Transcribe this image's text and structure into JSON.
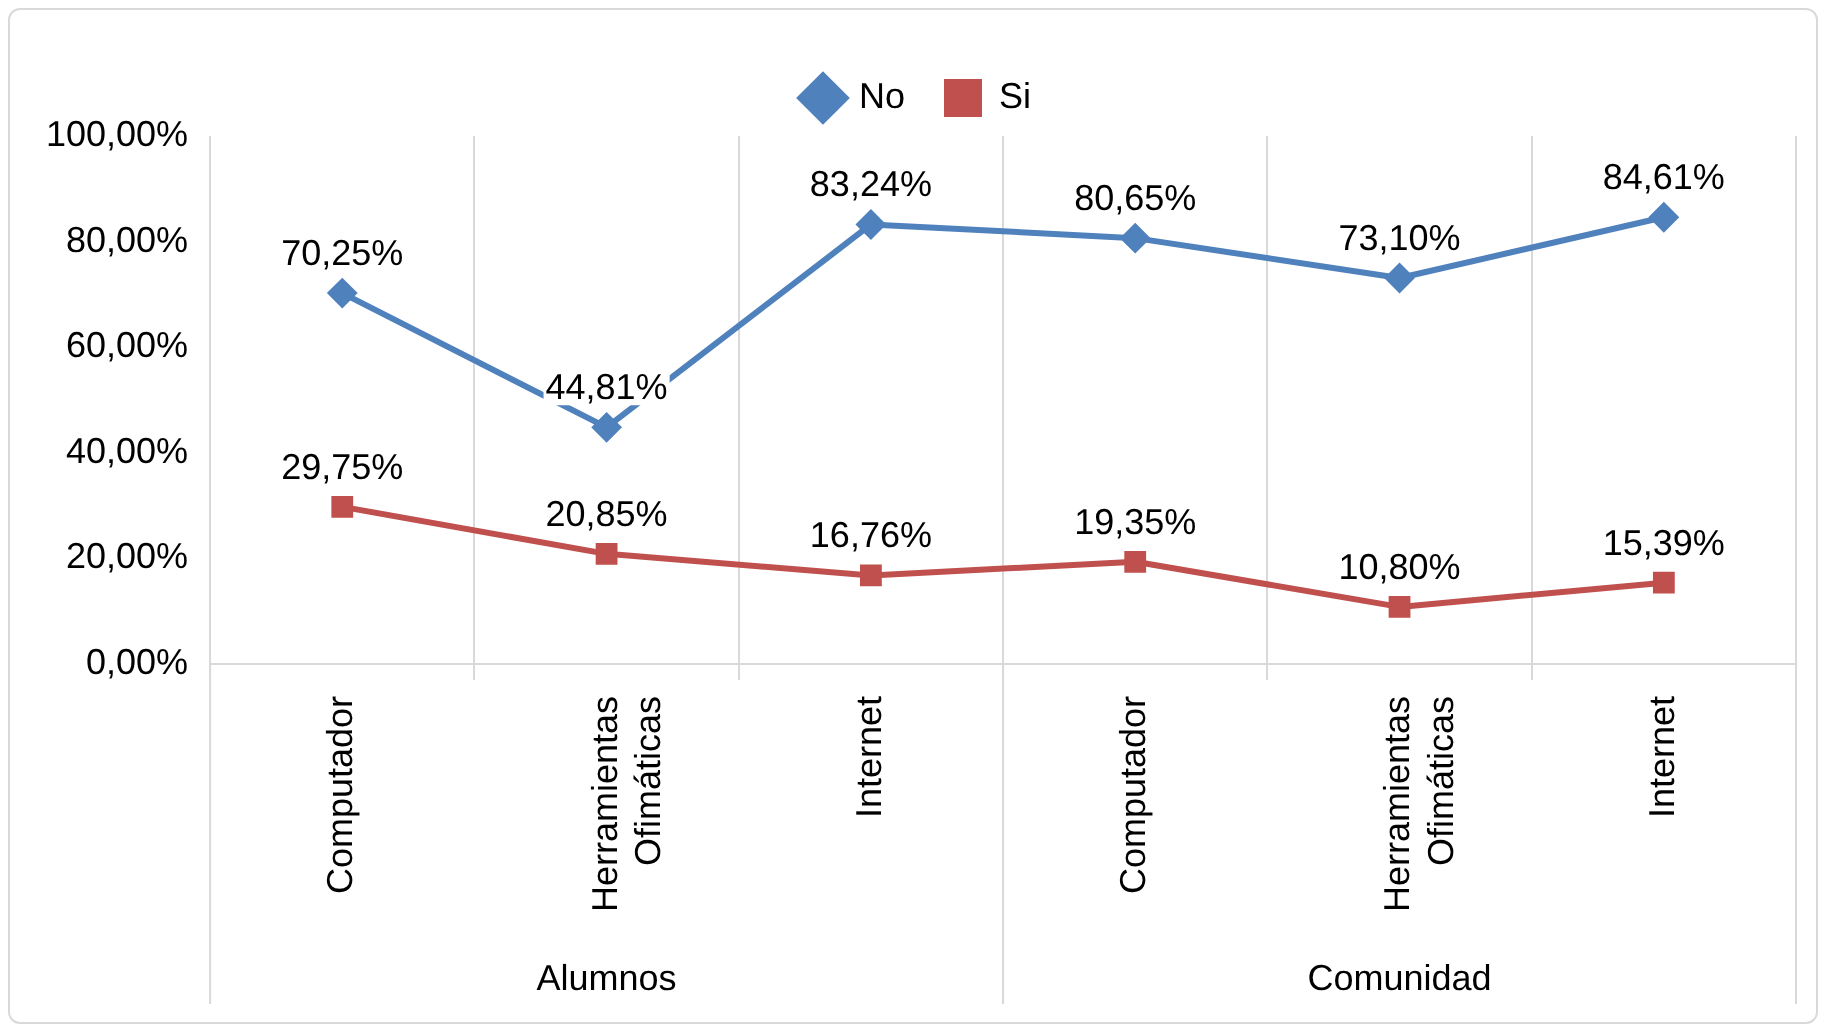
{
  "chart_data": {
    "type": "line",
    "categories": [
      "Computador",
      "Herramientas Ofimáticas",
      "Internet",
      "Computador",
      "Herramientas Ofimáticas",
      "Internet"
    ],
    "series": [
      {
        "name": "No",
        "color": "#4f81bd",
        "marker": "diamond",
        "values": [
          70.25,
          44.81,
          83.24,
          80.65,
          73.1,
          84.61
        ],
        "value_labels": [
          "70,25%",
          "44,81%",
          "83,24%",
          "80,65%",
          "73,10%",
          "84,61%"
        ]
      },
      {
        "name": "Si",
        "color": "#c0504d",
        "marker": "square",
        "values": [
          29.75,
          20.85,
          16.76,
          19.35,
          10.8,
          15.39
        ],
        "value_labels": [
          "29,75%",
          "20,85%",
          "16,76%",
          "19,35%",
          "10,80%",
          "15,39%"
        ]
      }
    ],
    "ylim": [
      0,
      100
    ],
    "yticks": [
      {
        "value": 0,
        "label": "0,00%"
      },
      {
        "value": 20,
        "label": "20,00%"
      },
      {
        "value": 40,
        "label": "40,00%"
      },
      {
        "value": 60,
        "label": "60,00%"
      },
      {
        "value": 80,
        "label": "80,00%"
      },
      {
        "value": 100,
        "label": "100,00%"
      }
    ],
    "annotations": [
      "Alumnos",
      "Comunidad"
    ],
    "grid": "x",
    "legend": "top",
    "line_style": "solid"
  }
}
